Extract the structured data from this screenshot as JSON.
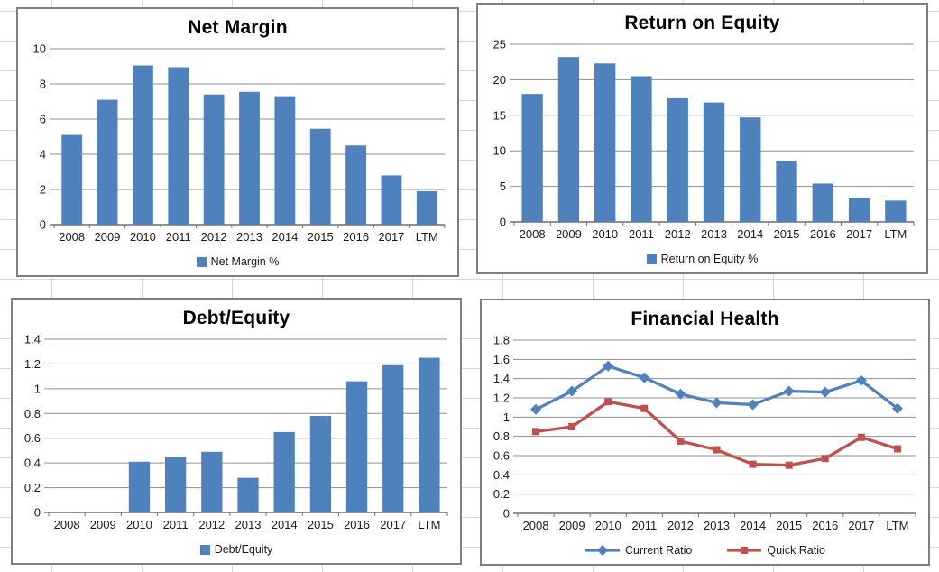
{
  "sheet": {
    "background_gridline_color": "#cfd7e3",
    "panel_border_color": "#7f7f7f"
  },
  "chart_data": [
    {
      "type": "bar",
      "title": "Net Margin",
      "categories": [
        "2008",
        "2009",
        "2010",
        "2011",
        "2012",
        "2013",
        "2014",
        "2015",
        "2016",
        "2017",
        "LTM"
      ],
      "series": [
        {
          "name": "Net Margin %",
          "color": "#4F81BD",
          "values": [
            5.1,
            7.1,
            9.05,
            8.95,
            7.4,
            7.55,
            7.3,
            5.45,
            4.5,
            2.8,
            1.9
          ]
        }
      ],
      "xlabel": "",
      "ylabel": "",
      "ylim": [
        0,
        10
      ],
      "ytick_step": 2,
      "grid": true,
      "legend_position": "bottom"
    },
    {
      "type": "bar",
      "title": "Return on Equity",
      "categories": [
        "2008",
        "2009",
        "2010",
        "2011",
        "2012",
        "2013",
        "2014",
        "2015",
        "2016",
        "2017",
        "LTM"
      ],
      "series": [
        {
          "name": "Return on Equity %",
          "color": "#4F81BD",
          "values": [
            18.0,
            23.2,
            22.3,
            20.5,
            17.4,
            16.8,
            14.7,
            8.6,
            5.4,
            3.4,
            3.0
          ]
        }
      ],
      "xlabel": "",
      "ylabel": "",
      "ylim": [
        0,
        25
      ],
      "ytick_step": 5,
      "grid": true,
      "legend_position": "bottom"
    },
    {
      "type": "bar",
      "title": "Debt/Equity",
      "categories": [
        "2008",
        "2009",
        "2010",
        "2011",
        "2012",
        "2013",
        "2014",
        "2015",
        "2016",
        "2017",
        "LTM"
      ],
      "series": [
        {
          "name": "Debt/Equity",
          "color": "#4F81BD",
          "values": [
            0,
            0,
            0.41,
            0.45,
            0.49,
            0.28,
            0.65,
            0.78,
            1.06,
            1.19,
            1.25
          ]
        }
      ],
      "xlabel": "",
      "ylabel": "",
      "ylim": [
        0,
        1.4
      ],
      "ytick_step": 0.2,
      "grid": true,
      "legend_position": "bottom"
    },
    {
      "type": "line",
      "title": "Financial Health",
      "categories": [
        "2008",
        "2009",
        "2010",
        "2011",
        "2012",
        "2013",
        "2014",
        "2015",
        "2016",
        "2017",
        "LTM"
      ],
      "series": [
        {
          "name": "Current Ratio",
          "color": "#4F81BD",
          "marker": "diamond",
          "values": [
            1.08,
            1.27,
            1.53,
            1.41,
            1.24,
            1.15,
            1.13,
            1.27,
            1.26,
            1.38,
            1.09
          ]
        },
        {
          "name": "Quick Ratio",
          "color": "#C0504D",
          "marker": "square",
          "values": [
            0.85,
            0.9,
            1.16,
            1.09,
            0.75,
            0.66,
            0.51,
            0.5,
            0.57,
            0.79,
            0.67
          ]
        }
      ],
      "xlabel": "",
      "ylabel": "",
      "ylim": [
        0,
        1.8
      ],
      "ytick_step": 0.2,
      "grid": true,
      "legend_position": "bottom"
    }
  ],
  "plot_style": {
    "gridline_color": "#8f8f8f",
    "axis_color": "#6e6e6e",
    "tick_label_color": "#1a1a1a"
  }
}
